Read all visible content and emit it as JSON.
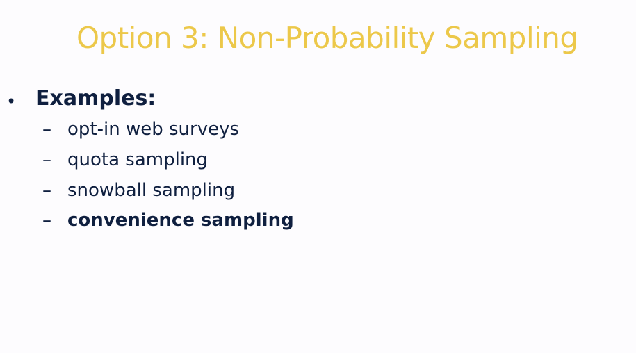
{
  "slide": {
    "title": "Option 3: Non-Probability Sampling",
    "bullet": {
      "marker": "•",
      "label": "Examples:"
    },
    "sub_items": [
      {
        "dash": "–",
        "text": "opt-in web surveys"
      },
      {
        "dash": "–",
        "text": "quota sampling"
      },
      {
        "dash": "–",
        "text": "snowball sampling"
      },
      {
        "dash": "–",
        "text": "convenience sampling"
      }
    ],
    "colors": {
      "title": "#ecc84a",
      "body": "#0f1f3f",
      "background": "#fdfcfe"
    }
  }
}
